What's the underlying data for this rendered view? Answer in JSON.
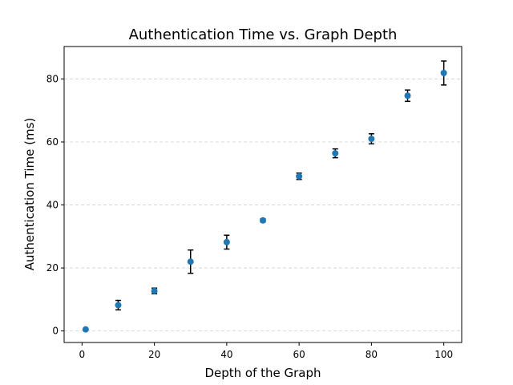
{
  "chart_data": {
    "type": "scatter",
    "title": "Authentication Time vs. Graph Depth",
    "xlabel": "Depth of the Graph",
    "ylabel": "Authentication Time (ms)",
    "xlim": [
      -4.95,
      104.95
    ],
    "ylim": [
      -3.66,
      90.3
    ],
    "xticks": [
      0,
      20,
      40,
      60,
      80,
      100
    ],
    "yticks": [
      0,
      20,
      40,
      60,
      80
    ],
    "grid": {
      "axis": "y",
      "style": "dashed"
    },
    "marker_color": "#1f77b4",
    "errorbar_color": "#000000",
    "series": [
      {
        "x": [
          1,
          10,
          20,
          30,
          40,
          50,
          60,
          70,
          80,
          90,
          100
        ],
        "y": [
          0.5,
          8.2,
          12.7,
          22.0,
          28.2,
          35.1,
          49.1,
          56.4,
          61.0,
          74.7,
          81.9
        ],
        "yerr": [
          0.2,
          1.5,
          0.9,
          3.7,
          2.2,
          0.5,
          1.0,
          1.4,
          1.6,
          1.8,
          3.8
        ]
      }
    ]
  }
}
